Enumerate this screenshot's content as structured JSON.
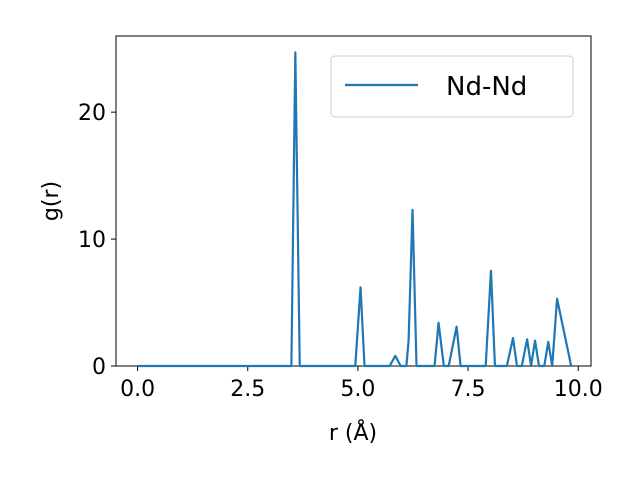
{
  "chart_data": {
    "type": "line",
    "xlabel": "r (Å)",
    "ylabel": "g(r)",
    "x": [
      0,
      3.49,
      3.58,
      3.68,
      4.94,
      5.06,
      5.15,
      5.72,
      5.85,
      5.97,
      6.1,
      6.15,
      6.24,
      6.33,
      6.74,
      6.83,
      6.95,
      7.06,
      7.24,
      7.33,
      7.9,
      8.02,
      8.11,
      8.38,
      8.52,
      8.61,
      8.72,
      8.84,
      8.93,
      9.02,
      9.11,
      9.23,
      9.32,
      9.41,
      9.52,
      9.84
    ],
    "series": [
      {
        "name": "Nd-Nd",
        "color": "#1f77b4",
        "values": [
          0,
          0,
          24.7,
          0,
          0,
          6.2,
          0,
          0,
          0.8,
          0,
          0,
          2.0,
          12.3,
          0,
          0,
          3.4,
          0,
          0,
          3.1,
          0,
          0,
          7.5,
          0,
          0,
          2.2,
          0,
          0,
          2.1,
          0,
          2.0,
          0,
          0,
          1.9,
          0,
          5.3,
          0
        ]
      }
    ],
    "xlim": [
      -0.49,
      10.29
    ],
    "ylim": [
      0,
      26
    ],
    "xticks": [
      {
        "value": 0,
        "label": "0.0"
      },
      {
        "value": 2.5,
        "label": "2.5"
      },
      {
        "value": 5,
        "label": "5.0"
      },
      {
        "value": 7.5,
        "label": "7.5"
      },
      {
        "value": 10,
        "label": "10.0"
      }
    ],
    "yticks": [
      0,
      10,
      20
    ],
    "legend": "upper right"
  }
}
